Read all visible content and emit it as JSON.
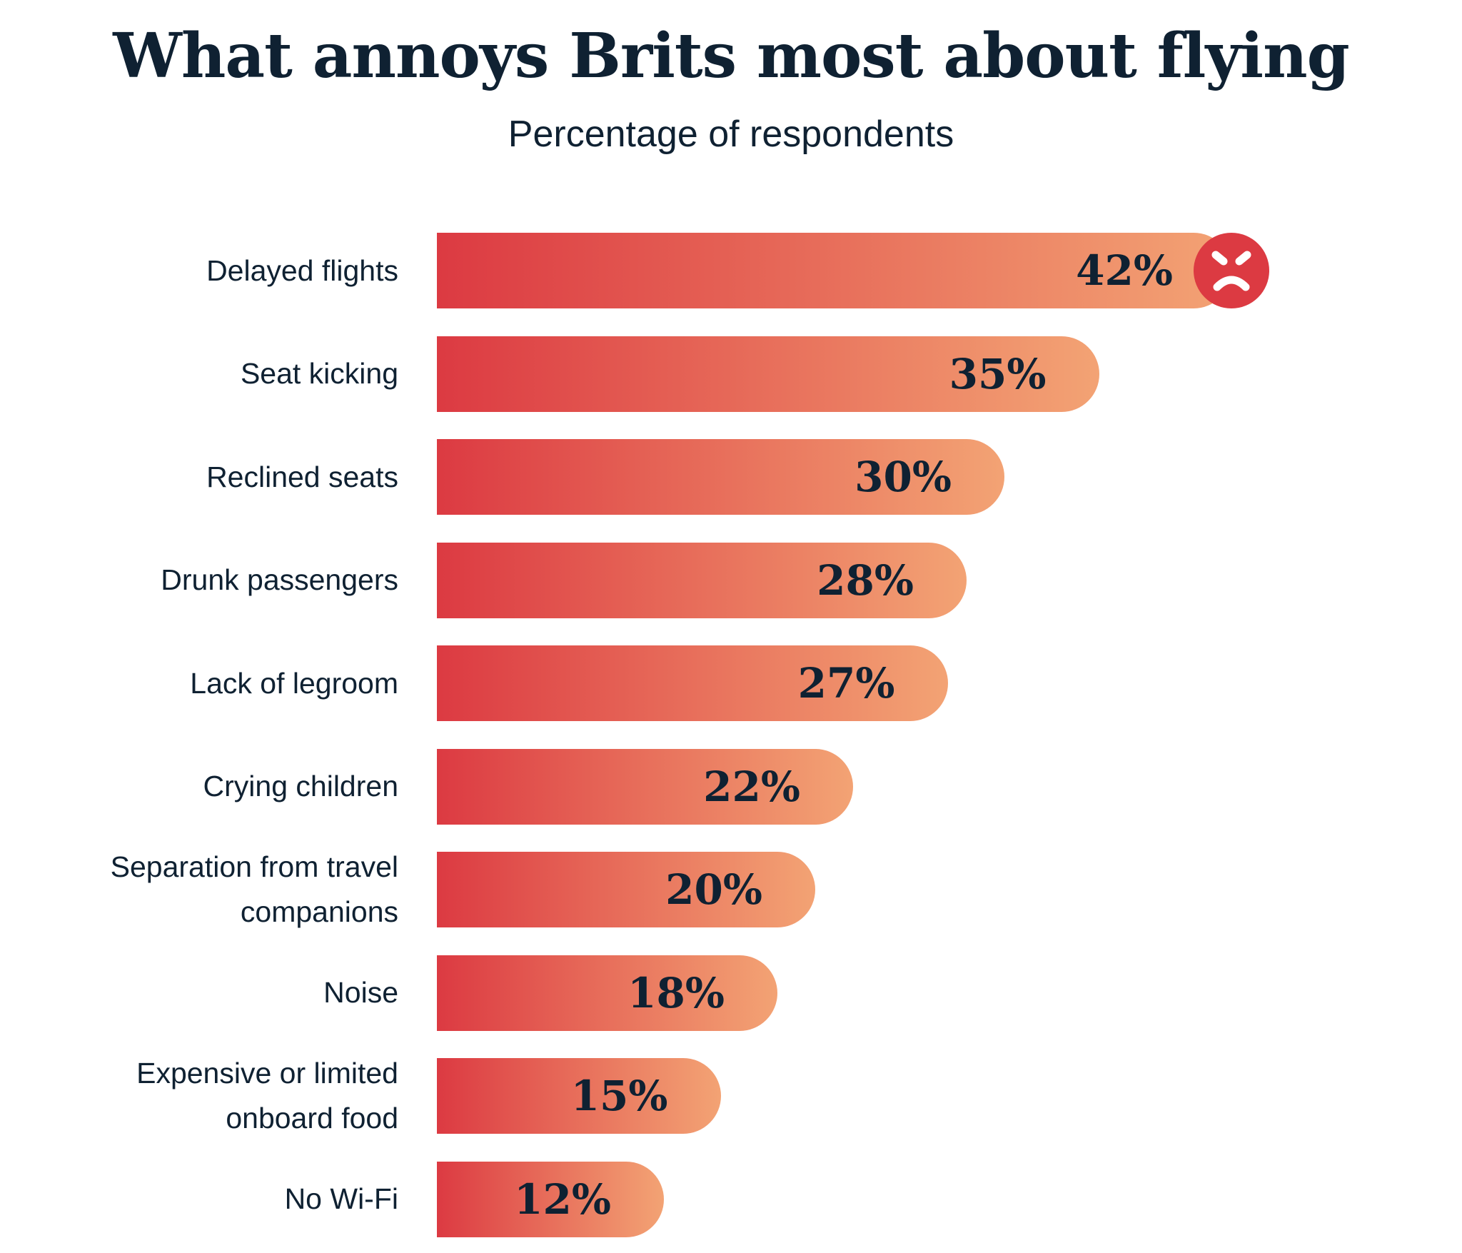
{
  "chart_data": {
    "type": "bar",
    "orientation": "horizontal",
    "title": "What annoys Brits most about flying",
    "subtitle": "Percentage of respondents",
    "categories": [
      "Delayed flights",
      "Seat kicking",
      "Reclined seats",
      "Drunk passengers",
      "Lack of legroom",
      "Crying children",
      "Separation from travel companions",
      "Noise",
      "Expensive or limited onboard food",
      "No Wi-Fi"
    ],
    "category_lines": [
      [
        "Delayed flights"
      ],
      [
        "Seat kicking"
      ],
      [
        "Reclined seats"
      ],
      [
        "Drunk passengers"
      ],
      [
        "Lack of legroom"
      ],
      [
        "Crying children"
      ],
      [
        "Separation from travel",
        "companions"
      ],
      [
        "Noise"
      ],
      [
        "Expensive or limited",
        "onboard food"
      ],
      [
        "No Wi-Fi"
      ]
    ],
    "values": [
      42,
      35,
      30,
      28,
      27,
      22,
      20,
      18,
      15,
      12
    ],
    "labels": [
      "42%",
      "35%",
      "30%",
      "28%",
      "27%",
      "22%",
      "20%",
      "18%",
      "15%",
      "12%"
    ],
    "unit": "%",
    "grid": false,
    "colors": {
      "gradient_start": "#dc3a42",
      "gradient_end": "#f3a374",
      "text": "#0f2132",
      "icon": "#dc3a42"
    },
    "annotation_icon": "angry-face-icon"
  }
}
